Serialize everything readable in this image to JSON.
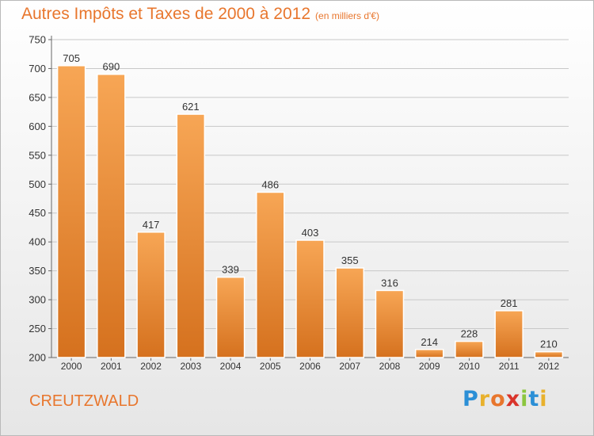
{
  "title": "Autres Impôts et Taxes de 2000 à 2012",
  "subtitle": "(en milliers d'€)",
  "commune": "CREUTZWALD",
  "logo": {
    "text": "Proxiti",
    "letters": [
      {
        "ch": "P",
        "color": "#2b8fd6"
      },
      {
        "ch": "r",
        "color": "#e8b12d"
      },
      {
        "ch": "o",
        "color": "#e8762d"
      },
      {
        "ch": "x",
        "color": "#d9342b"
      },
      {
        "ch": "i",
        "color": "#8cc63f"
      },
      {
        "ch": "t",
        "color": "#2b8fd6"
      },
      {
        "ch": "i",
        "color": "#e8b12d"
      }
    ]
  },
  "colors": {
    "accent": "#e8762d",
    "bar_light": "#f7a655",
    "bar_dark": "#d5711e",
    "grid": "#c8c8c8",
    "axis_text": "#333333"
  },
  "chart_data": {
    "type": "bar",
    "categories": [
      "2000",
      "2001",
      "2002",
      "2003",
      "2004",
      "2005",
      "2006",
      "2007",
      "2008",
      "2009",
      "2010",
      "2011",
      "2012"
    ],
    "values": [
      705,
      690,
      417,
      621,
      339,
      486,
      403,
      355,
      316,
      214,
      228,
      281,
      210
    ],
    "yticks": [
      200,
      250,
      300,
      350,
      400,
      450,
      500,
      550,
      600,
      650,
      700,
      750
    ],
    "ylim": [
      200,
      750
    ],
    "grid": true,
    "data_labels": true
  }
}
